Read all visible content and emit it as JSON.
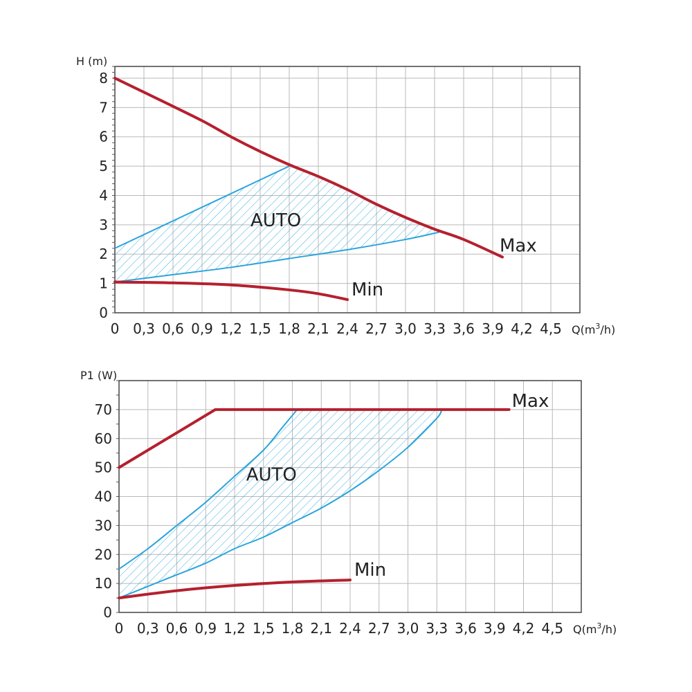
{
  "chart_data": [
    {
      "type": "line",
      "ylabel": "H (m)",
      "xlabel": "Q(m3/h)",
      "xlim": [
        0,
        4.8
      ],
      "ylim": [
        0,
        8.4
      ],
      "x_ticks": [
        "0",
        "0,3",
        "0,6",
        "0,9",
        "1,2",
        "1,5",
        "1,8",
        "2,1",
        "2,4",
        "2,7",
        "3,0",
        "3,3",
        "3,6",
        "3,9",
        "4,2",
        "4,5"
      ],
      "y_ticks": [
        "0",
        "1",
        "2",
        "3",
        "4",
        "5",
        "6",
        "7",
        "8"
      ],
      "grid": true,
      "series": [
        {
          "name": "Max",
          "color": "#b5202e",
          "x": [
            0,
            0.5,
            0.9,
            1.2,
            1.5,
            1.8,
            2.1,
            2.4,
            2.7,
            3.0,
            3.3,
            3.6,
            4.0
          ],
          "y": [
            8.0,
            7.2,
            6.55,
            6.0,
            5.5,
            5.05,
            4.65,
            4.2,
            3.7,
            3.25,
            2.85,
            2.5,
            1.9
          ]
        },
        {
          "name": "Min",
          "color": "#b5202e",
          "x": [
            0,
            0.6,
            1.2,
            1.8,
            2.1,
            2.4
          ],
          "y": [
            1.05,
            1.02,
            0.95,
            0.78,
            0.65,
            0.45
          ]
        }
      ],
      "auto_region": {
        "label": "AUTO",
        "color": "#2aa4dc",
        "upper": {
          "x": [
            0,
            1.8
          ],
          "y": [
            2.2,
            5.0
          ]
        },
        "lower": {
          "x": [
            0,
            0.6,
            1.2,
            1.8,
            2.4,
            3.0,
            3.35
          ],
          "y": [
            1.05,
            1.3,
            1.55,
            1.85,
            2.15,
            2.5,
            2.75
          ]
        },
        "apex_top": 1.8,
        "apex_right": 3.35
      },
      "labels": {
        "max": "Max",
        "min": "Min",
        "auto": "AUTO"
      }
    },
    {
      "type": "line",
      "ylabel": "P1 (W)",
      "xlabel": "Q(m3/h)",
      "xlim": [
        0,
        4.8
      ],
      "ylim": [
        0,
        80
      ],
      "x_ticks": [
        "0",
        "0,3",
        "0,6",
        "0,9",
        "1,2",
        "1,5",
        "1,8",
        "2,1",
        "2,4",
        "2,7",
        "3,0",
        "3,3",
        "3,6",
        "3,9",
        "4,2",
        "4,5"
      ],
      "y_ticks": [
        "0",
        "10",
        "20",
        "30",
        "40",
        "50",
        "60",
        "70"
      ],
      "grid": true,
      "series": [
        {
          "name": "Max",
          "color": "#b5202e",
          "x": [
            0,
            1.0,
            4.05
          ],
          "y": [
            50,
            70,
            70
          ]
        },
        {
          "name": "Min",
          "color": "#b5202e",
          "x": [
            0,
            0.6,
            1.2,
            1.8,
            2.4
          ],
          "y": [
            5.0,
            7.5,
            9.3,
            10.5,
            11.2
          ]
        }
      ],
      "auto_region": {
        "label": "AUTO",
        "color": "#2aa4dc",
        "upper": {
          "x": [
            0,
            0.3,
            0.6,
            0.9,
            1.2,
            1.5,
            1.7,
            1.85
          ],
          "y": [
            15,
            22,
            30,
            38,
            47,
            56,
            64,
            70
          ]
        },
        "lower": {
          "x": [
            0,
            0.3,
            0.6,
            0.9,
            1.2,
            1.5,
            1.8,
            2.1,
            2.4,
            2.7,
            3.0,
            3.3,
            3.35
          ],
          "y": [
            5,
            9,
            13,
            17,
            22,
            26,
            31,
            36,
            42,
            49,
            57,
            67,
            70
          ]
        },
        "top_y": 70
      },
      "labels": {
        "max": "Max",
        "min": "Min",
        "auto": "AUTO"
      }
    }
  ]
}
